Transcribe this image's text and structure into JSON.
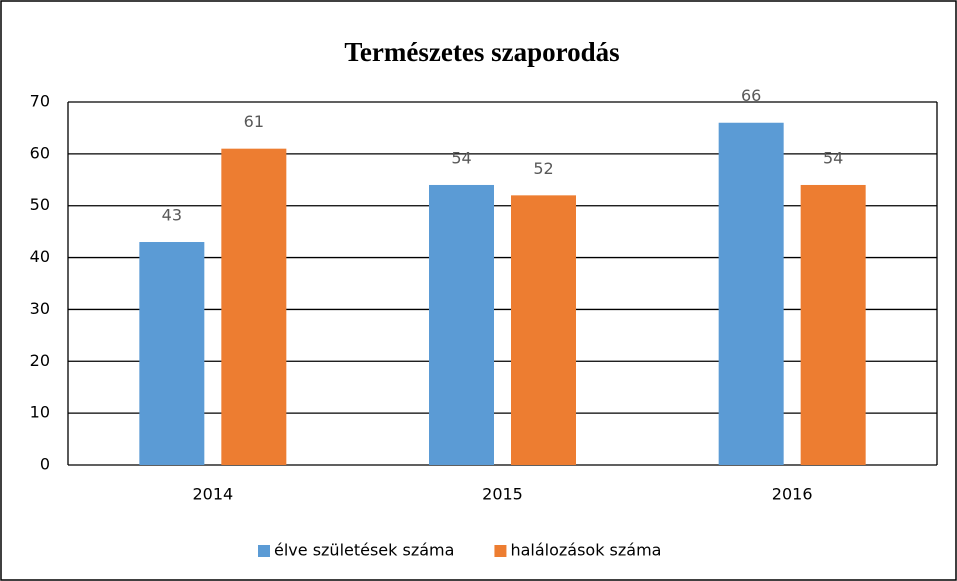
{
  "chart_data": {
    "type": "bar",
    "title": "Természetes szaporodás",
    "categories": [
      "2014",
      "2015",
      "2016"
    ],
    "series": [
      {
        "name": "élve születések száma",
        "color": "#5b9bd5",
        "values": [
          43,
          54,
          66
        ]
      },
      {
        "name": "halálozások száma",
        "color": "#ed7d31",
        "values": [
          61,
          52,
          54
        ]
      }
    ],
    "ylim": [
      0,
      70
    ],
    "yticks": [
      0,
      10,
      20,
      30,
      40,
      50,
      60,
      70
    ],
    "grid": true,
    "legend": "bottom"
  }
}
